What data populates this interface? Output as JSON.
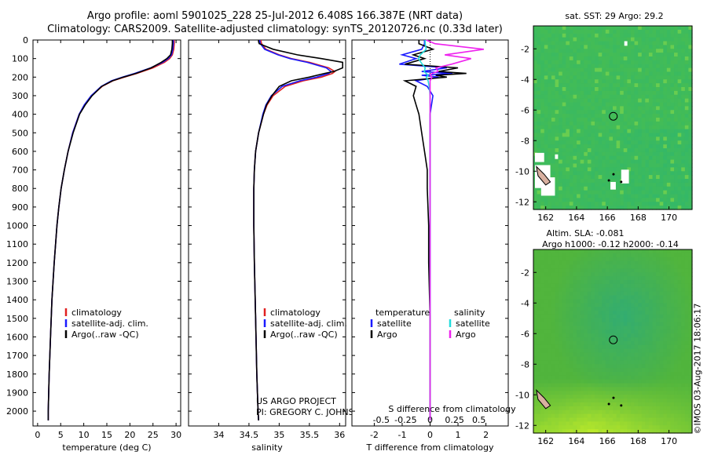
{
  "header": {
    "line1": "Argo profile: aoml 5901025_228 25-Jul-2012 6.408S 166.387E (NRT data)",
    "line2": "Climatology: CARS2009. Satellite-adjusted climatology: synTS_20120726.nc (0.33d later)"
  },
  "colors": {
    "climatology": "#e02020",
    "satellite": "#1a1aff",
    "argo": "#000000",
    "sat_salinity": "#22dddd",
    "argo_salinity": "#ee22ee"
  },
  "chart_data": [
    {
      "id": "temperature",
      "type": "line",
      "xlabel": "temperature (deg C)",
      "xlim": [
        -1,
        31
      ],
      "ylim": [
        2080,
        0
      ],
      "xticks": [
        0,
        5,
        10,
        15,
        20,
        25,
        30
      ],
      "yticks": [
        0,
        100,
        200,
        300,
        400,
        500,
        600,
        700,
        800,
        900,
        1000,
        1100,
        1200,
        1300,
        1400,
        1500,
        1600,
        1700,
        1800,
        1900,
        2000
      ],
      "depth": [
        0,
        10,
        20,
        50,
        80,
        100,
        120,
        150,
        180,
        200,
        220,
        250,
        300,
        350,
        400,
        500,
        600,
        700,
        800,
        900,
        1000,
        1200,
        1400,
        1600,
        1800,
        2000,
        2050
      ],
      "series": [
        {
          "name": "climatology",
          "color_key": "climatology",
          "values": [
            29.6,
            29.6,
            29.6,
            29.5,
            29.2,
            28.6,
            27.5,
            25.0,
            21.5,
            18.8,
            16.3,
            14.0,
            11.7,
            10.2,
            9.0,
            7.6,
            6.6,
            5.8,
            5.1,
            4.6,
            4.2,
            3.6,
            3.1,
            2.8,
            2.5,
            2.3,
            2.3
          ]
        },
        {
          "name": "satellite-adj. clim.",
          "color_key": "satellite",
          "values": [
            29.4,
            29.4,
            29.4,
            29.3,
            29.0,
            28.3,
            27.1,
            24.5,
            21.0,
            18.4,
            16.0,
            13.8,
            11.6,
            10.1,
            9.0,
            7.6,
            6.6,
            5.8,
            5.1,
            4.6,
            4.2,
            3.6,
            3.1,
            2.8,
            2.5,
            2.3,
            2.3
          ]
        },
        {
          "name": "Argo(..raw -QC)",
          "color_key": "argo",
          "values": [
            29.2,
            29.2,
            29.2,
            29.1,
            28.8,
            28.0,
            26.8,
            24.6,
            21.3,
            18.6,
            16.2,
            13.9,
            11.8,
            10.3,
            9.1,
            7.7,
            6.6,
            5.8,
            5.1,
            4.6,
            4.2,
            3.6,
            3.1,
            2.8,
            2.5,
            2.3,
            2.3
          ]
        }
      ],
      "legend": [
        "climatology",
        "satellite-adj. clim.",
        "Argo(..raw -QC)"
      ]
    },
    {
      "id": "salinity",
      "type": "line",
      "xlabel": "salinity",
      "xlim": [
        33.5,
        36.1
      ],
      "ylim": [
        2080,
        0
      ],
      "xticks": [
        34,
        34.5,
        35,
        35.5,
        36
      ],
      "depth": [
        0,
        10,
        20,
        50,
        80,
        100,
        120,
        150,
        170,
        180,
        200,
        220,
        250,
        300,
        350,
        400,
        500,
        600,
        700,
        800,
        1000,
        1200,
        1500,
        1800,
        2000,
        2050
      ],
      "series": [
        {
          "name": "climatology",
          "color_key": "climatology",
          "values": [
            34.7,
            34.7,
            34.71,
            34.78,
            35.0,
            35.2,
            35.5,
            35.82,
            35.92,
            35.88,
            35.7,
            35.4,
            35.1,
            34.9,
            34.8,
            34.74,
            34.66,
            34.61,
            34.59,
            34.58,
            34.58,
            34.59,
            34.61,
            34.63,
            34.65,
            34.66
          ]
        },
        {
          "name": "satellite-adj. clim.",
          "color_key": "satellite",
          "values": [
            34.68,
            34.68,
            34.69,
            34.76,
            34.98,
            35.18,
            35.46,
            35.78,
            35.86,
            35.82,
            35.62,
            35.34,
            35.05,
            34.87,
            34.78,
            34.73,
            34.66,
            34.61,
            34.59,
            34.58,
            34.58,
            34.59,
            34.61,
            34.63,
            34.65,
            34.66
          ]
        },
        {
          "name": "Argo(..raw -QC)",
          "color_key": "argo",
          "values": [
            34.66,
            34.66,
            34.67,
            34.9,
            35.3,
            35.7,
            36.05,
            36.05,
            35.9,
            35.75,
            35.5,
            35.2,
            35.0,
            34.88,
            34.79,
            34.74,
            34.66,
            34.61,
            34.59,
            34.58,
            34.58,
            34.59,
            34.61,
            34.63,
            34.65,
            34.66
          ]
        }
      ],
      "legend": [
        "climatology",
        "satellite-adj. clim.",
        "Argo(..raw -QC)"
      ],
      "annotation": [
        "US ARGO PROJECT",
        "PI: GREGORY C. JOHNSON"
      ]
    },
    {
      "id": "difference",
      "type": "line",
      "xlabel_top": "S difference from climatology",
      "xlabel": "T difference from climatology",
      "t_xlim": [
        -2.8,
        2.8
      ],
      "t_xticks": [
        -2,
        -1,
        0,
        1,
        2
      ],
      "s_ticks": [
        -0.5,
        -0.25,
        0,
        0.25,
        0.5
      ],
      "ylim": [
        2080,
        0
      ],
      "depth": [
        0,
        20,
        50,
        80,
        100,
        130,
        150,
        170,
        180,
        190,
        200,
        220,
        250,
        300,
        350,
        400,
        500,
        600,
        700,
        800,
        1000,
        1200,
        1500,
        1800,
        2000,
        2050
      ],
      "series": [
        {
          "name": "temperature satellite",
          "color_key": "satellite",
          "values": [
            -0.2,
            -0.2,
            -0.3,
            -1.0,
            -0.5,
            -1.1,
            0.6,
            -0.3,
            0.8,
            -0.3,
            0.3,
            -0.5,
            -0.1,
            0.1,
            0.05,
            0.0,
            0.0,
            0.0,
            0.0,
            0.0,
            0.0,
            0.0,
            0.0,
            0.0,
            0.0,
            0.0
          ]
        },
        {
          "name": "temperature Argo",
          "color_key": "argo",
          "values": [
            -0.4,
            -0.4,
            0.1,
            -0.6,
            -0.2,
            -0.9,
            1.0,
            0.3,
            1.3,
            0.2,
            0.6,
            -0.9,
            -0.5,
            -0.6,
            -0.5,
            -0.4,
            -0.3,
            -0.2,
            -0.1,
            -0.1,
            -0.05,
            -0.05,
            0.0,
            0.0,
            0.0,
            0.0
          ]
        },
        {
          "name": "salinity satellite",
          "color_key": "sat_salinity",
          "values": [
            -0.05,
            -0.05,
            -0.04,
            -0.1,
            -0.12,
            -0.08,
            -0.05,
            -0.06,
            -0.04,
            -0.02,
            -0.04,
            -0.02,
            -0.01,
            0.0,
            0.0,
            0.0,
            0.0,
            0.0,
            0.0,
            0.0,
            0.0,
            0.0,
            0.0,
            0.0,
            0.0,
            0.0
          ]
        },
        {
          "name": "salinity Argo",
          "color_key": "argo_salinity",
          "values": [
            -0.04,
            0.05,
            0.55,
            0.15,
            0.42,
            0.22,
            0.06,
            0.08,
            0.02,
            0.0,
            0.02,
            0.0,
            0.0,
            0.0,
            0.0,
            0.0,
            0.0,
            0.0,
            0.0,
            0.0,
            0.0,
            0.0,
            0.0,
            0.0,
            0.0,
            0.0
          ]
        }
      ],
      "legend": {
        "col1_title": "temperature",
        "col2_title": "salinity",
        "col1": [
          "satellite",
          "Argo"
        ],
        "col2": [
          "satellite",
          "Argo"
        ]
      }
    },
    {
      "id": "sst_map",
      "type": "heatmap",
      "title": "sat. SST: 29 Argo: 29.2",
      "xlim": [
        161.2,
        171.5
      ],
      "ylim": [
        -12.5,
        -0.5
      ],
      "xticks": [
        162,
        164,
        166,
        168,
        170
      ],
      "yticks": [
        -2,
        -4,
        -6,
        -8,
        -10,
        -12
      ],
      "marker": {
        "lon": 166.387,
        "lat": -6.408
      }
    },
    {
      "id": "sla_map",
      "type": "heatmap",
      "title_line1": "Altim. SLA: -0.081",
      "title_line2": "Argo h1000: -0.12 h2000: -0.14",
      "xlim": [
        161.2,
        171.5
      ],
      "ylim": [
        -12.5,
        -0.5
      ],
      "xticks": [
        162,
        164,
        166,
        168,
        170
      ],
      "yticks": [
        -2,
        -4,
        -6,
        -8,
        -10,
        -12
      ],
      "marker": {
        "lon": 166.387,
        "lat": -6.408
      }
    }
  ],
  "footer": {
    "credit": "©IMOS 03-Aug-2017 18:06:17"
  }
}
